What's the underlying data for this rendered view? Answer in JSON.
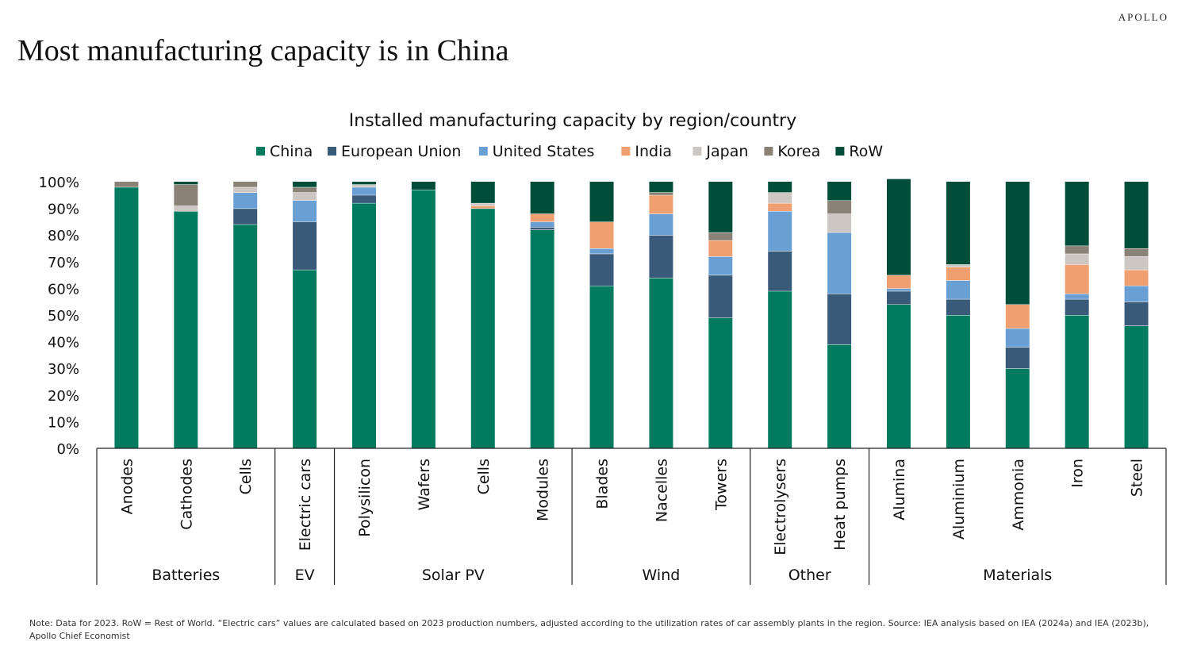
{
  "header": {
    "brand": "APOLLO",
    "headline": "Most manufacturing capacity is in China"
  },
  "footer": {
    "note": "Note: Data for 2023. RoW = Rest of World. “Electric cars” values are calculated based on 2023 production numbers, adjusted according to the utilization rates of car assembly plants in the region. Source: IEA analysis based on IEA (2024a) and IEA (2023b), Apollo Chief Economist"
  },
  "chart_data": {
    "type": "bar",
    "stacked": true,
    "title": "Installed manufacturing capacity by region/country",
    "legend_position": "top",
    "ylim": [
      0,
      100
    ],
    "y_ticks": [
      "0%",
      "10%",
      "20%",
      "30%",
      "40%",
      "50%",
      "60%",
      "70%",
      "80%",
      "90%",
      "100%"
    ],
    "grid": false,
    "categories": [
      "Anodes",
      "Cathodes",
      "Cells",
      "Electric cars",
      "Polysilicon",
      "Wafers",
      "Cells",
      "Modules",
      "Blades",
      "Nacelles",
      "Towers",
      "Electrolysers",
      "Heat pumps",
      "Alumina",
      "Aluminium",
      "Ammonia",
      "Iron",
      "Steel"
    ],
    "groups": [
      {
        "label": "Batteries",
        "count": 3
      },
      {
        "label": "EV",
        "count": 1
      },
      {
        "label": "Solar PV",
        "count": 4
      },
      {
        "label": "Wind",
        "count": 3
      },
      {
        "label": "Other",
        "count": 2
      },
      {
        "label": "Materials",
        "count": 5
      }
    ],
    "series": [
      {
        "name": "China",
        "color": "#007b5f",
        "values": [
          98,
          89,
          84,
          67,
          92,
          97,
          90,
          82,
          61,
          64,
          49,
          59,
          39,
          54,
          50,
          30,
          50,
          46
        ]
      },
      {
        "name": "European Union",
        "color": "#3a5a7a",
        "values": [
          0,
          0,
          6,
          18,
          3,
          0,
          0,
          1,
          12,
          16,
          16,
          15,
          19,
          5,
          6,
          8,
          6,
          9
        ]
      },
      {
        "name": "United States",
        "color": "#6a9fd4",
        "values": [
          0,
          0,
          6,
          8,
          3,
          0,
          0,
          2,
          2,
          8,
          7,
          15,
          23,
          1,
          7,
          7,
          2,
          6
        ]
      },
      {
        "name": "India",
        "color": "#f0a070",
        "values": [
          0,
          0,
          0,
          0,
          0,
          0,
          1,
          3,
          10,
          7,
          6,
          3,
          0,
          5,
          5,
          9,
          11,
          6
        ]
      },
      {
        "name": "Japan",
        "color": "#ccc7c2",
        "values": [
          0,
          2,
          2,
          3,
          1,
          0,
          1,
          0,
          0,
          0,
          0,
          4,
          7,
          0,
          1,
          0,
          4,
          5
        ]
      },
      {
        "name": "Korea",
        "color": "#8b8277",
        "values": [
          2,
          8,
          2,
          2,
          0,
          0,
          0,
          0,
          0,
          1,
          3,
          0,
          5,
          0,
          0,
          0,
          3,
          3
        ]
      },
      {
        "name": "RoW",
        "color": "#004d3a",
        "values": [
          0,
          1,
          0,
          2,
          1,
          3,
          8,
          12,
          15,
          4,
          19,
          4,
          7,
          36,
          31,
          46,
          24,
          25
        ]
      }
    ]
  }
}
